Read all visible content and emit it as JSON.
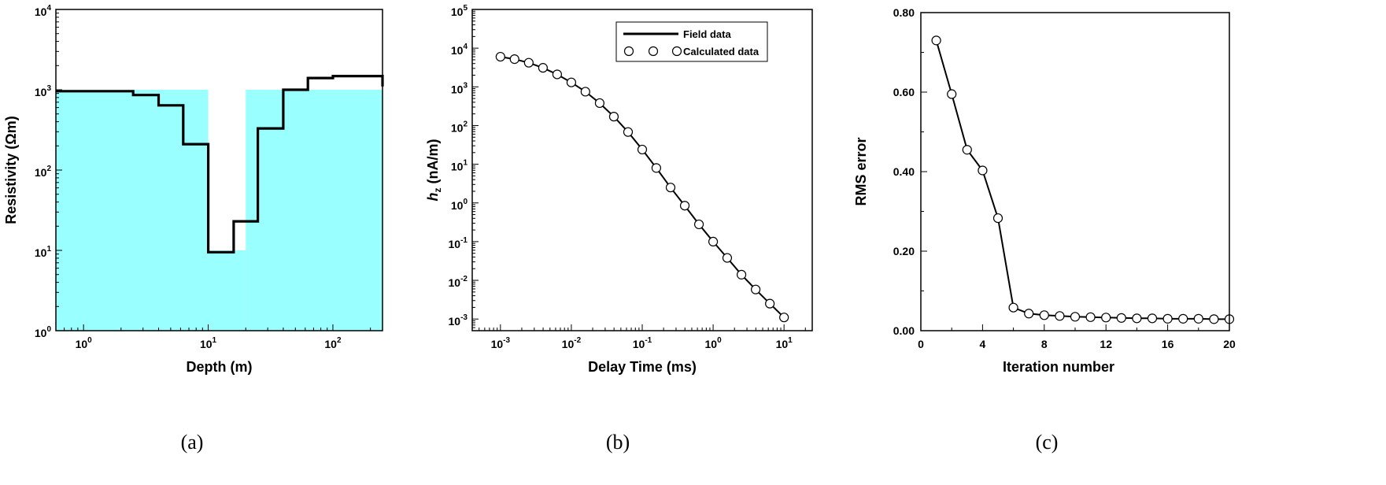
{
  "chart_data": [
    {
      "id": "a",
      "type": "line",
      "panel_label": "(a)",
      "xlabel": "Depth (m)",
      "ylabel": "Resistivity (Ωm)",
      "x_scale": "log",
      "y_scale": "log",
      "xlim": [
        0.6,
        250
      ],
      "ylim": [
        1,
        10000
      ],
      "x_ticks": [
        {
          "base": "10",
          "exp": "0",
          "value": 1
        },
        {
          "base": "10",
          "exp": "1",
          "value": 10
        },
        {
          "base": "10",
          "exp": "2",
          "value": 100
        }
      ],
      "y_ticks": [
        {
          "base": "10",
          "exp": "0",
          "value": 1
        },
        {
          "base": "10",
          "exp": "1",
          "value": 10
        },
        {
          "base": "10",
          "exp": "2",
          "value": 100
        },
        {
          "base": "10",
          "exp": "3",
          "value": 1000
        },
        {
          "base": "10",
          "exp": "4",
          "value": 10000
        }
      ],
      "fill_color": "#99ffff",
      "true_model": [
        {
          "x": [
            0.6,
            10
          ],
          "y": 1000
        },
        {
          "x": [
            10,
            20
          ],
          "y": 10
        },
        {
          "x": [
            20,
            250
          ],
          "y": 1000
        }
      ],
      "inverted_model": {
        "x": [
          0.6,
          2.5,
          2.5,
          4,
          4,
          6.3,
          6.3,
          10,
          10,
          16,
          16,
          25,
          25,
          40,
          40,
          63,
          63,
          100,
          100,
          250,
          250
        ],
        "y": [
          960,
          960,
          860,
          860,
          640,
          640,
          210,
          210,
          9.5,
          9.5,
          23,
          23,
          330,
          330,
          1000,
          1000,
          1400,
          1400,
          1480,
          1480,
          1100
        ]
      }
    },
    {
      "id": "b",
      "type": "line",
      "panel_label": "(b)",
      "xlabel": "Delay Time (ms)",
      "ylabel_main": "h",
      "ylabel_sub": "z",
      "ylabel_unit": " (nA/m)",
      "x_scale": "log",
      "y_scale": "log",
      "xlim": [
        0.0004,
        25
      ],
      "ylim": [
        0.0005,
        100000
      ],
      "x_ticks": [
        {
          "base": "10",
          "exp": "-3",
          "value": 0.001
        },
        {
          "base": "10",
          "exp": "-2",
          "value": 0.01
        },
        {
          "base": "10",
          "exp": "-1",
          "value": 0.1
        },
        {
          "base": "10",
          "exp": "0",
          "value": 1
        },
        {
          "base": "10",
          "exp": "1",
          "value": 10
        }
      ],
      "y_ticks": [
        {
          "base": "10",
          "exp": "-3",
          "value": 0.001
        },
        {
          "base": "10",
          "exp": "-2",
          "value": 0.01
        },
        {
          "base": "10",
          "exp": "-1",
          "value": 0.1
        },
        {
          "base": "10",
          "exp": "0",
          "value": 1
        },
        {
          "base": "10",
          "exp": "1",
          "value": 10
        },
        {
          "base": "10",
          "exp": "2",
          "value": 100
        },
        {
          "base": "10",
          "exp": "3",
          "value": 1000
        },
        {
          "base": "10",
          "exp": "4",
          "value": 10000
        },
        {
          "base": "10",
          "exp": "5",
          "value": 100000
        }
      ],
      "legend": {
        "field": "Field data",
        "calculated": "Calculated data",
        "position": "top-right"
      },
      "series": [
        {
          "name": "Field data",
          "x": [
            0.001,
            0.00158,
            0.00251,
            0.00398,
            0.00631,
            0.01,
            0.0158,
            0.0251,
            0.0398,
            0.0631,
            0.1,
            0.158,
            0.251,
            0.398,
            0.631,
            1,
            1.58,
            2.51,
            3.98,
            6.31,
            10
          ],
          "y": [
            6000,
            5200,
            4200,
            3100,
            2100,
            1300,
            750,
            380,
            170,
            68,
            24,
            8,
            2.5,
            0.85,
            0.28,
            0.1,
            0.038,
            0.014,
            0.0058,
            0.0025,
            0.0011
          ]
        },
        {
          "name": "Calculated data",
          "x": [
            0.001,
            0.00158,
            0.00251,
            0.00398,
            0.00631,
            0.01,
            0.0158,
            0.0251,
            0.0398,
            0.0631,
            0.1,
            0.158,
            0.251,
            0.398,
            0.631,
            1,
            1.58,
            2.51,
            3.98,
            6.31,
            10
          ],
          "y": [
            6000,
            5200,
            4200,
            3100,
            2100,
            1300,
            750,
            380,
            170,
            68,
            24,
            8,
            2.5,
            0.85,
            0.28,
            0.1,
            0.038,
            0.014,
            0.0058,
            0.0025,
            0.0011
          ]
        }
      ]
    },
    {
      "id": "c",
      "type": "line",
      "panel_label": "(c)",
      "xlabel": "Iteration number",
      "ylabel": "RMS error",
      "xlim": [
        0,
        20
      ],
      "ylim": [
        0,
        0.8
      ],
      "x_ticks": [
        {
          "label": "0",
          "value": 0
        },
        {
          "label": "4",
          "value": 4
        },
        {
          "label": "8",
          "value": 8
        },
        {
          "label": "12",
          "value": 12
        },
        {
          "label": "16",
          "value": 16
        },
        {
          "label": "20",
          "value": 20
        }
      ],
      "y_ticks": [
        {
          "label": "0.00",
          "value": 0
        },
        {
          "label": "0.20",
          "value": 0.2
        },
        {
          "label": "0.40",
          "value": 0.4
        },
        {
          "label": "0.60",
          "value": 0.6
        },
        {
          "label": "0.80",
          "value": 0.8
        }
      ],
      "series": [
        {
          "x": [
            1,
            2,
            3,
            4,
            5,
            6,
            7,
            8,
            9,
            10,
            11,
            12,
            13,
            14,
            15,
            16,
            17,
            18,
            19,
            20
          ],
          "y": [
            0.73,
            0.595,
            0.455,
            0.403,
            0.283,
            0.058,
            0.043,
            0.039,
            0.037,
            0.035,
            0.034,
            0.033,
            0.032,
            0.031,
            0.031,
            0.03,
            0.03,
            0.03,
            0.029,
            0.029
          ]
        }
      ]
    }
  ]
}
